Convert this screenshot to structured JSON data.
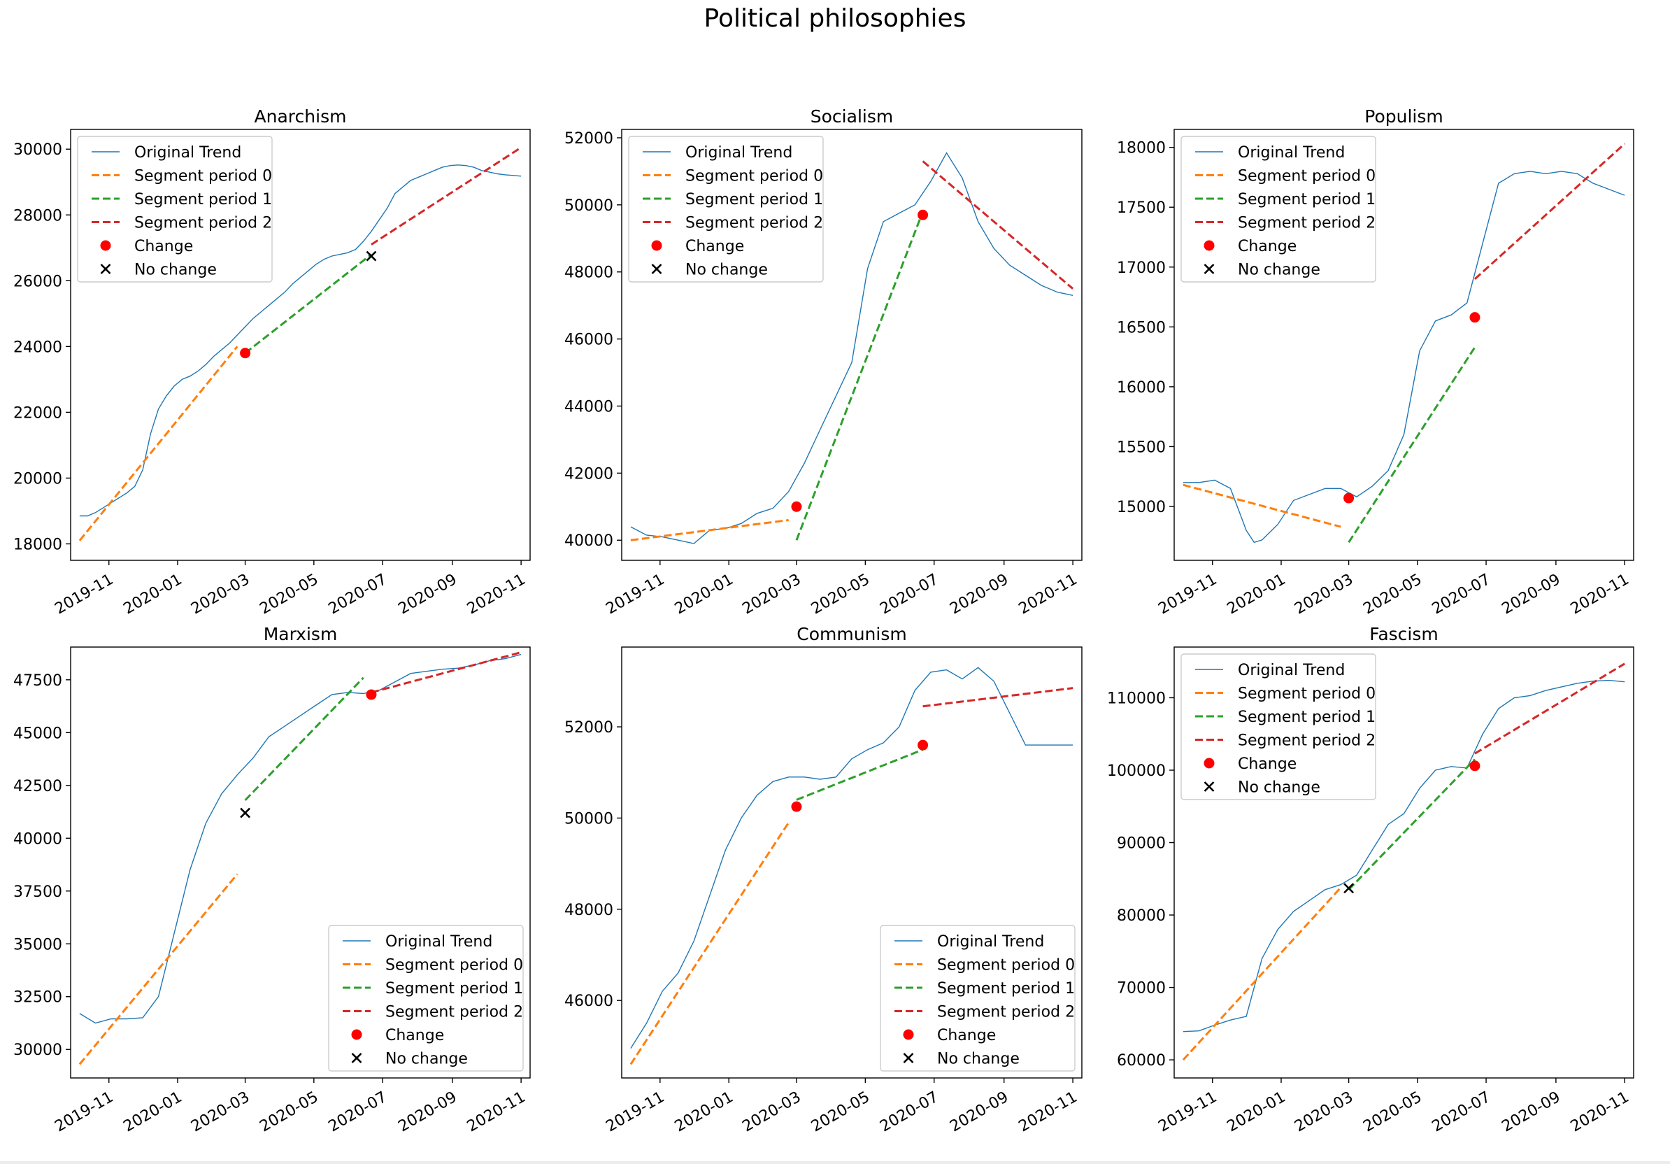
{
  "figure": {
    "title": "Political philosophies"
  },
  "legend_labels": {
    "original": "Original Trend",
    "seg0": "Segment period 0",
    "seg1": "Segment period 1",
    "seg2": "Segment period 2",
    "change": "Change",
    "nochange": "No change"
  },
  "colors": {
    "original": "#1f77b4",
    "seg0": "#ff7f0e",
    "seg1": "#2ca02c",
    "seg2": "#d62728",
    "change": "#ff0000",
    "nochange": "#000000"
  },
  "chart_data": [
    {
      "type": "line",
      "title": "Anarchism",
      "x_ticks": [
        "2019-11",
        "2020-01",
        "2020-03",
        "2020-05",
        "2020-07",
        "2020-09",
        "2020-11"
      ],
      "ylim": [
        17500,
        30600
      ],
      "y_ticks": [
        18000,
        20000,
        22000,
        24000,
        26000,
        28000,
        30000
      ],
      "y_tick_labels": [
        "18000",
        "20000",
        "22000",
        "24000",
        "26000",
        "28000",
        "30000"
      ],
      "legend_position": "upper-left",
      "original_trend": {
        "x": [
          "2019-10-06",
          "2019-10-13",
          "2019-10-20",
          "2019-10-27",
          "2019-11-03",
          "2019-11-10",
          "2019-11-17",
          "2019-11-24",
          "2019-12-01",
          "2019-12-08",
          "2019-12-15",
          "2019-12-22",
          "2019-12-29",
          "2020-01-05",
          "2020-01-12",
          "2020-01-19",
          "2020-01-26",
          "2020-02-02",
          "2020-02-09",
          "2020-02-16",
          "2020-02-23",
          "2020-03-01",
          "2020-03-08",
          "2020-03-15",
          "2020-03-22",
          "2020-03-29",
          "2020-04-05",
          "2020-04-12",
          "2020-04-19",
          "2020-04-26",
          "2020-05-03",
          "2020-05-10",
          "2020-05-17",
          "2020-05-24",
          "2020-05-31",
          "2020-06-07",
          "2020-06-14",
          "2020-06-21",
          "2020-06-28",
          "2020-07-05",
          "2020-07-12",
          "2020-07-19",
          "2020-07-26",
          "2020-08-02",
          "2020-08-09",
          "2020-08-16",
          "2020-08-23",
          "2020-08-30",
          "2020-09-06",
          "2020-09-13",
          "2020-09-20",
          "2020-09-27",
          "2020-10-04",
          "2020-10-11",
          "2020-10-18",
          "2020-10-25",
          "2020-11-01"
        ],
        "y": [
          18850,
          18850,
          18950,
          19100,
          19250,
          19400,
          19550,
          19750,
          20250,
          21350,
          22100,
          22500,
          22800,
          23000,
          23100,
          23250,
          23450,
          23700,
          23900,
          24100,
          24350,
          24600,
          24850,
          25050,
          25250,
          25450,
          25650,
          25900,
          26100,
          26300,
          26500,
          26650,
          26750,
          26800,
          26850,
          26950,
          27200,
          27500,
          27850,
          28200,
          28650,
          28850,
          29050,
          29150,
          29250,
          29350,
          29450,
          29500,
          29520,
          29500,
          29450,
          29350,
          29300,
          29250,
          29220,
          29200,
          29180
        ]
      },
      "segments": [
        {
          "label": "seg0",
          "x": [
            "2019-10-06",
            "2020-02-23"
          ],
          "y": [
            18100,
            24000
          ]
        },
        {
          "label": "seg1",
          "x": [
            "2020-03-01",
            "2020-06-21"
          ],
          "y": [
            23800,
            26800
          ]
        },
        {
          "label": "seg2",
          "x": [
            "2020-06-21",
            "2020-11-01"
          ],
          "y": [
            27100,
            30050
          ]
        }
      ],
      "change_points": [
        {
          "x": "2020-03-01",
          "y": 23800
        }
      ],
      "no_change_points": [
        {
          "x": "2020-06-21",
          "y": 26750
        }
      ]
    },
    {
      "type": "line",
      "title": "Socialism",
      "x_ticks": [
        "2019-11",
        "2020-01",
        "2020-03",
        "2020-05",
        "2020-07",
        "2020-09",
        "2020-11"
      ],
      "ylim": [
        39400,
        52250
      ],
      "y_ticks": [
        40000,
        42000,
        44000,
        46000,
        48000,
        50000,
        52000
      ],
      "y_tick_labels": [
        "40000",
        "42000",
        "44000",
        "46000",
        "48000",
        "50000",
        "52000"
      ],
      "legend_position": "upper-left",
      "original_trend": {
        "x": [
          "2019-10-06",
          "2019-10-20",
          "2019-11-03",
          "2019-11-17",
          "2019-12-01",
          "2019-12-15",
          "2019-12-29",
          "2020-01-12",
          "2020-01-26",
          "2020-02-09",
          "2020-02-23",
          "2020-03-08",
          "2020-03-22",
          "2020-04-05",
          "2020-04-19",
          "2020-05-03",
          "2020-05-17",
          "2020-05-31",
          "2020-06-14",
          "2020-06-28",
          "2020-07-12",
          "2020-07-26",
          "2020-08-09",
          "2020-08-23",
          "2020-09-06",
          "2020-09-20",
          "2020-10-04",
          "2020-10-18",
          "2020-11-01"
        ],
        "y": [
          40400,
          40150,
          40100,
          40000,
          39900,
          40300,
          40350,
          40500,
          40800,
          40950,
          41450,
          42300,
          43300,
          44300,
          45300,
          48100,
          49500,
          49750,
          50000,
          50700,
          51550,
          50800,
          49500,
          48700,
          48200,
          47900,
          47600,
          47400,
          47300
        ]
      },
      "segments": [
        {
          "label": "seg0",
          "x": [
            "2019-10-06",
            "2020-02-23"
          ],
          "y": [
            40000,
            40600
          ]
        },
        {
          "label": "seg1",
          "x": [
            "2020-03-01",
            "2020-06-21"
          ],
          "y": [
            40000,
            49800
          ]
        },
        {
          "label": "seg2",
          "x": [
            "2020-06-21",
            "2020-11-01"
          ],
          "y": [
            51300,
            47500
          ]
        }
      ],
      "change_points": [
        {
          "x": "2020-03-01",
          "y": 41000
        },
        {
          "x": "2020-06-21",
          "y": 49700
        }
      ],
      "no_change_points": []
    },
    {
      "type": "line",
      "title": "Populism",
      "x_ticks": [
        "2019-11",
        "2020-01",
        "2020-03",
        "2020-05",
        "2020-07",
        "2020-09",
        "2020-11"
      ],
      "ylim": [
        14550,
        18150
      ],
      "y_ticks": [
        15000,
        15500,
        16000,
        16500,
        17000,
        17500,
        18000
      ],
      "y_tick_labels": [
        "15000",
        "15500",
        "16000",
        "16500",
        "17000",
        "17500",
        "18000"
      ],
      "legend_position": "upper-left",
      "original_trend": {
        "x": [
          "2019-10-06",
          "2019-10-20",
          "2019-11-03",
          "2019-11-17",
          "2019-12-01",
          "2019-12-08",
          "2019-12-15",
          "2019-12-29",
          "2020-01-12",
          "2020-01-26",
          "2020-02-09",
          "2020-02-23",
          "2020-03-08",
          "2020-03-22",
          "2020-04-05",
          "2020-04-19",
          "2020-05-03",
          "2020-05-17",
          "2020-05-31",
          "2020-06-14",
          "2020-06-28",
          "2020-07-12",
          "2020-07-26",
          "2020-08-09",
          "2020-08-23",
          "2020-09-06",
          "2020-09-20",
          "2020-10-04",
          "2020-10-18",
          "2020-11-01"
        ],
        "y": [
          15200,
          15200,
          15220,
          15150,
          14800,
          14700,
          14720,
          14850,
          15050,
          15100,
          15150,
          15150,
          15080,
          15170,
          15300,
          15600,
          16300,
          16550,
          16600,
          16700,
          17200,
          17700,
          17780,
          17800,
          17780,
          17800,
          17780,
          17700,
          17650,
          17600
        ]
      },
      "segments": [
        {
          "label": "seg0",
          "x": [
            "2019-10-06",
            "2020-02-23"
          ],
          "y": [
            15180,
            14830
          ]
        },
        {
          "label": "seg1",
          "x": [
            "2020-03-01",
            "2020-06-21"
          ],
          "y": [
            14700,
            16330
          ]
        },
        {
          "label": "seg2",
          "x": [
            "2020-06-21",
            "2020-11-01"
          ],
          "y": [
            16900,
            18030
          ]
        }
      ],
      "change_points": [
        {
          "x": "2020-03-01",
          "y": 15070
        },
        {
          "x": "2020-06-21",
          "y": 16580
        }
      ],
      "no_change_points": []
    },
    {
      "type": "line",
      "title": "Marxism",
      "x_ticks": [
        "2019-11",
        "2020-01",
        "2020-03",
        "2020-05",
        "2020-07",
        "2020-09",
        "2020-11"
      ],
      "ylim": [
        28650,
        49050
      ],
      "y_ticks": [
        30000,
        32500,
        35000,
        37500,
        40000,
        42500,
        45000,
        47500
      ],
      "y_tick_labels": [
        "30000",
        "32500",
        "35000",
        "37500",
        "40000",
        "42500",
        "45000",
        "47500"
      ],
      "legend_position": "lower-right",
      "original_trend": {
        "x": [
          "2019-10-06",
          "2019-10-20",
          "2019-11-03",
          "2019-11-17",
          "2019-12-01",
          "2019-12-15",
          "2019-12-29",
          "2020-01-12",
          "2020-01-26",
          "2020-02-09",
          "2020-02-23",
          "2020-03-08",
          "2020-03-22",
          "2020-04-05",
          "2020-04-19",
          "2020-05-03",
          "2020-05-17",
          "2020-05-31",
          "2020-06-14",
          "2020-06-28",
          "2020-07-12",
          "2020-07-26",
          "2020-08-09",
          "2020-08-23",
          "2020-09-06",
          "2020-09-20",
          "2020-10-04",
          "2020-10-18",
          "2020-11-01"
        ],
        "y": [
          31700,
          31250,
          31450,
          31450,
          31500,
          32500,
          35500,
          38500,
          40700,
          42100,
          43000,
          43800,
          44800,
          45300,
          45800,
          46300,
          46800,
          46900,
          46850,
          47000,
          47400,
          47800,
          47900,
          48000,
          48050,
          48200,
          48400,
          48500,
          48700
        ]
      },
      "segments": [
        {
          "label": "seg0",
          "x": [
            "2019-10-06",
            "2020-02-23"
          ],
          "y": [
            29300,
            38300
          ]
        },
        {
          "label": "seg1",
          "x": [
            "2020-03-01",
            "2020-06-14"
          ],
          "y": [
            41800,
            47600
          ]
        },
        {
          "label": "seg2",
          "x": [
            "2020-06-21",
            "2020-11-01"
          ],
          "y": [
            46900,
            48800
          ]
        }
      ],
      "change_points": [
        {
          "x": "2020-06-21",
          "y": 46800
        }
      ],
      "no_change_points": [
        {
          "x": "2020-03-01",
          "y": 41200
        }
      ]
    },
    {
      "type": "line",
      "title": "Communism",
      "x_ticks": [
        "2019-11",
        "2020-01",
        "2020-03",
        "2020-05",
        "2020-07",
        "2020-09",
        "2020-11"
      ],
      "ylim": [
        44300,
        53750
      ],
      "y_ticks": [
        46000,
        48000,
        50000,
        52000
      ],
      "y_tick_labels": [
        "46000",
        "48000",
        "50000",
        "52000"
      ],
      "legend_position": "lower-right",
      "original_trend": {
        "x": [
          "2019-10-06",
          "2019-10-20",
          "2019-11-03",
          "2019-11-17",
          "2019-12-01",
          "2019-12-15",
          "2019-12-29",
          "2020-01-12",
          "2020-01-26",
          "2020-02-09",
          "2020-02-23",
          "2020-03-08",
          "2020-03-22",
          "2020-04-05",
          "2020-04-19",
          "2020-05-03",
          "2020-05-17",
          "2020-05-31",
          "2020-06-14",
          "2020-06-28",
          "2020-07-12",
          "2020-07-26",
          "2020-08-09",
          "2020-08-23",
          "2020-09-06",
          "2020-09-20",
          "2020-10-04",
          "2020-10-18",
          "2020-11-01"
        ],
        "y": [
          44950,
          45500,
          46200,
          46600,
          47300,
          48300,
          49300,
          50000,
          50500,
          50800,
          50900,
          50900,
          50850,
          50900,
          51300,
          51500,
          51650,
          52000,
          52800,
          53200,
          53250,
          53050,
          53300,
          53000,
          52300,
          51600,
          51600,
          51600,
          51600
        ]
      },
      "segments": [
        {
          "label": "seg0",
          "x": [
            "2019-10-06",
            "2020-02-23"
          ],
          "y": [
            44600,
            49900
          ]
        },
        {
          "label": "seg1",
          "x": [
            "2020-03-01",
            "2020-06-21"
          ],
          "y": [
            50400,
            51500
          ]
        },
        {
          "label": "seg2",
          "x": [
            "2020-06-21",
            "2020-11-01"
          ],
          "y": [
            52450,
            52850
          ]
        }
      ],
      "change_points": [
        {
          "x": "2020-03-01",
          "y": 50250
        },
        {
          "x": "2020-06-21",
          "y": 51600
        }
      ],
      "no_change_points": []
    },
    {
      "type": "line",
      "title": "Fascism",
      "x_ticks": [
        "2019-11",
        "2020-01",
        "2020-03",
        "2020-05",
        "2020-07",
        "2020-09",
        "2020-11"
      ],
      "ylim": [
        57500,
        117000
      ],
      "y_ticks": [
        60000,
        70000,
        80000,
        90000,
        100000,
        110000
      ],
      "y_tick_labels": [
        "60000",
        "70000",
        "80000",
        "90000",
        "100000",
        "110000"
      ],
      "legend_position": "upper-left",
      "original_trend": {
        "x": [
          "2019-10-06",
          "2019-10-20",
          "2019-11-03",
          "2019-11-17",
          "2019-12-01",
          "2019-12-15",
          "2019-12-29",
          "2020-01-12",
          "2020-01-26",
          "2020-02-09",
          "2020-02-23",
          "2020-03-08",
          "2020-03-22",
          "2020-04-05",
          "2020-04-19",
          "2020-05-03",
          "2020-05-17",
          "2020-05-31",
          "2020-06-14",
          "2020-06-28",
          "2020-07-12",
          "2020-07-26",
          "2020-08-09",
          "2020-08-23",
          "2020-09-06",
          "2020-09-20",
          "2020-10-04",
          "2020-10-18",
          "2020-11-01"
        ],
        "y": [
          63900,
          64000,
          64800,
          65500,
          66000,
          74000,
          78000,
          80500,
          82000,
          83500,
          84200,
          85500,
          89000,
          92500,
          94000,
          97500,
          100000,
          100500,
          100300,
          105000,
          108500,
          110000,
          110300,
          111000,
          111500,
          112000,
          112300,
          112400,
          112200
        ]
      },
      "segments": [
        {
          "label": "seg0",
          "x": [
            "2019-10-06",
            "2020-02-23"
          ],
          "y": [
            60000,
            83800
          ]
        },
        {
          "label": "seg1",
          "x": [
            "2020-03-01",
            "2020-06-21"
          ],
          "y": [
            83500,
            101500
          ]
        },
        {
          "label": "seg2",
          "x": [
            "2020-06-21",
            "2020-11-01"
          ],
          "y": [
            102300,
            114700
          ]
        }
      ],
      "change_points": [
        {
          "x": "2020-06-21",
          "y": 100600
        }
      ],
      "no_change_points": [
        {
          "x": "2020-03-01",
          "y": 83700
        }
      ]
    }
  ]
}
